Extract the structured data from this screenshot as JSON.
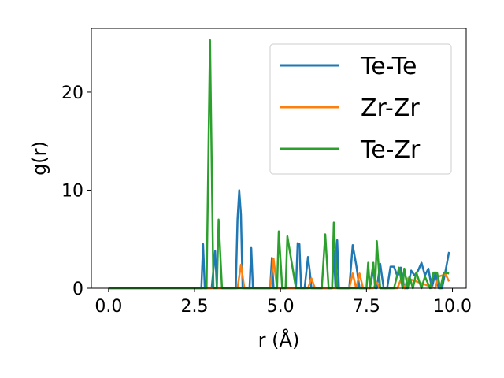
{
  "chart_data": {
    "type": "line",
    "title": "",
    "xlabel": "r (Å)",
    "ylabel": "g(r)",
    "xlim": [
      -0.5,
      10.4
    ],
    "ylim": [
      0,
      26.5
    ],
    "xticks": [
      "0.0",
      "2.5",
      "5.0",
      "7.5",
      "10.0"
    ],
    "xtick_values": [
      0,
      2.5,
      5,
      7.5,
      10
    ],
    "yticks": [
      "0",
      "10",
      "20"
    ],
    "ytick_values": [
      0,
      10,
      20
    ],
    "grid": false,
    "legend_position": "top-right",
    "series": [
      {
        "name": "Te-Te",
        "color": "#1f77b4",
        "x": [
          0.0,
          2.7,
          2.75,
          2.8,
          2.85,
          3.0,
          3.1,
          3.15,
          3.2,
          3.7,
          3.75,
          3.8,
          3.85,
          3.9,
          4.0,
          4.1,
          4.15,
          4.2,
          4.7,
          4.75,
          4.8,
          4.85,
          5.1,
          5.2,
          5.45,
          5.5,
          5.55,
          5.6,
          5.65,
          5.7,
          5.8,
          5.85,
          5.9,
          6.0,
          6.05,
          6.5,
          6.55,
          6.6,
          6.65,
          6.7,
          6.75,
          6.8,
          7.0,
          7.1,
          7.2,
          7.3,
          7.6,
          7.7,
          7.8,
          7.9,
          8.0,
          8.1,
          8.2,
          8.3,
          8.4,
          8.5,
          8.6,
          8.7,
          8.8,
          8.9,
          9.0,
          9.1,
          9.2,
          9.3,
          9.4,
          9.5,
          9.6,
          9.7,
          9.8,
          9.9
        ],
        "y": [
          0,
          0,
          4.5,
          0,
          0,
          0,
          3.8,
          0,
          0,
          0,
          7.0,
          10.0,
          7.5,
          0,
          0,
          0,
          4.1,
          0,
          0,
          3.1,
          0,
          0,
          0,
          0,
          0,
          4.6,
          4.5,
          0,
          0,
          0,
          3.2,
          1.8,
          0,
          0,
          0,
          0,
          3.8,
          0,
          4.9,
          0,
          0,
          0,
          0,
          4.4,
          2.4,
          0,
          0,
          1.9,
          0,
          2.5,
          0,
          0,
          2.2,
          2.2,
          1.2,
          2.1,
          0,
          0,
          1.8,
          1.3,
          1.8,
          2.6,
          1.3,
          2.0,
          0,
          1.5,
          0,
          0,
          1.8,
          3.7
        ]
      },
      {
        "name": "Zr-Zr",
        "color": "#ff7f0e",
        "x": [
          0.0,
          3.75,
          3.85,
          3.95,
          4.7,
          4.8,
          4.9,
          5.8,
          5.9,
          6.0,
          7.0,
          7.1,
          7.2,
          7.3,
          7.4,
          7.5,
          7.7,
          7.8,
          7.9,
          8.4,
          8.5,
          8.6,
          8.7,
          9.5,
          9.6,
          9.8,
          9.9
        ],
        "y": [
          0,
          0,
          2.4,
          0,
          0,
          3.0,
          0,
          0,
          1.0,
          0,
          0,
          1.5,
          0,
          1.5,
          0,
          0,
          0,
          0.6,
          0,
          0,
          0.9,
          0,
          1.0,
          0,
          1.2,
          1.4,
          0.7
        ]
      },
      {
        "name": "Te-Zr",
        "color": "#2ca02c",
        "x": [
          0.0,
          2.85,
          2.95,
          3.05,
          3.15,
          3.2,
          3.3,
          4.9,
          4.95,
          5.05,
          5.15,
          5.2,
          5.45,
          6.2,
          6.3,
          6.4,
          6.5,
          6.55,
          6.65,
          7.5,
          7.55,
          7.6,
          7.7,
          7.75,
          7.8,
          7.9,
          8.3,
          8.45,
          8.55,
          8.6,
          8.7,
          8.75,
          8.85,
          8.95,
          9.1,
          9.2,
          9.35,
          9.45,
          9.55,
          9.65,
          9.75,
          9.9
        ],
        "y": [
          0,
          0,
          25.3,
          0,
          0,
          7.0,
          0,
          0,
          5.8,
          0,
          0,
          5.3,
          0,
          0,
          5.5,
          0,
          0,
          6.7,
          0,
          0,
          2.6,
          0,
          2.6,
          0,
          4.8,
          0,
          0,
          2.1,
          0,
          2.0,
          0,
          1.2,
          0,
          1.6,
          0,
          1.2,
          0,
          1.6,
          1.6,
          0,
          1.6,
          1.5
        ]
      }
    ]
  }
}
